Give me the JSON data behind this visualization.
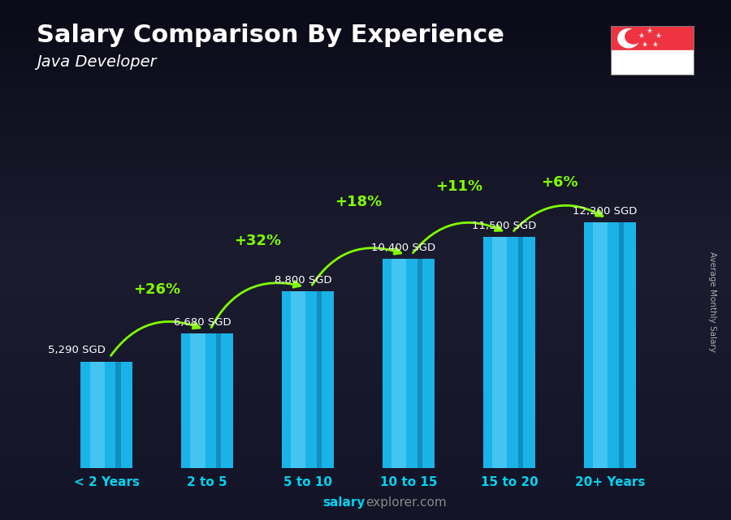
{
  "title": "Salary Comparison By Experience",
  "subtitle": "Java Developer",
  "categories": [
    "< 2 Years",
    "2 to 5",
    "5 to 10",
    "10 to 15",
    "15 to 20",
    "20+ Years"
  ],
  "values": [
    5290,
    6680,
    8800,
    10400,
    11500,
    12200
  ],
  "bar_color_main": "#1ab3e8",
  "bar_color_light": "#55ccf5",
  "bar_color_dark": "#0e85b5",
  "bg_top": "#1a1a2e",
  "bg_bottom": "#0d0d1a",
  "labels": [
    "5,290 SGD",
    "6,680 SGD",
    "8,800 SGD",
    "10,400 SGD",
    "11,500 SGD",
    "12,200 SGD"
  ],
  "pct_labels": [
    "+26%",
    "+32%",
    "+18%",
    "+11%",
    "+6%"
  ],
  "title_color": "#FFFFFF",
  "subtitle_color": "#FFFFFF",
  "label_color": "#FFFFFF",
  "pct_color": "#7fff00",
  "xticklabel_color": "#00d4f0",
  "watermark_bold": "salary",
  "watermark_normal": "explorer.com",
  "ylabel_text": "Average Monthly Salary",
  "ylim": [
    0,
    15500
  ],
  "bar_width": 0.52
}
